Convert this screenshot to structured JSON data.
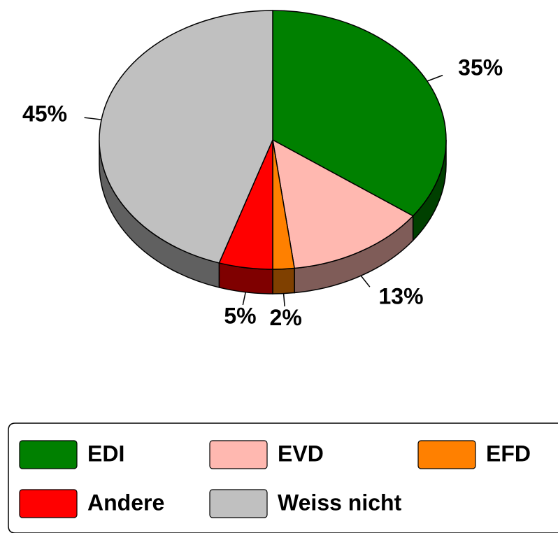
{
  "chart_data": {
    "type": "pie",
    "categories": [
      "EDI",
      "EVD",
      "EFD",
      "Andere",
      "Weiss nicht"
    ],
    "values": [
      35,
      13,
      2,
      5,
      45
    ],
    "value_labels": [
      "35%",
      "13%",
      "2%",
      "5%",
      "45%"
    ],
    "colors": [
      "#008000",
      "#ffb8b0",
      "#ff8000",
      "#ff0000",
      "#c0c0c0"
    ],
    "legend": "bottom"
  }
}
